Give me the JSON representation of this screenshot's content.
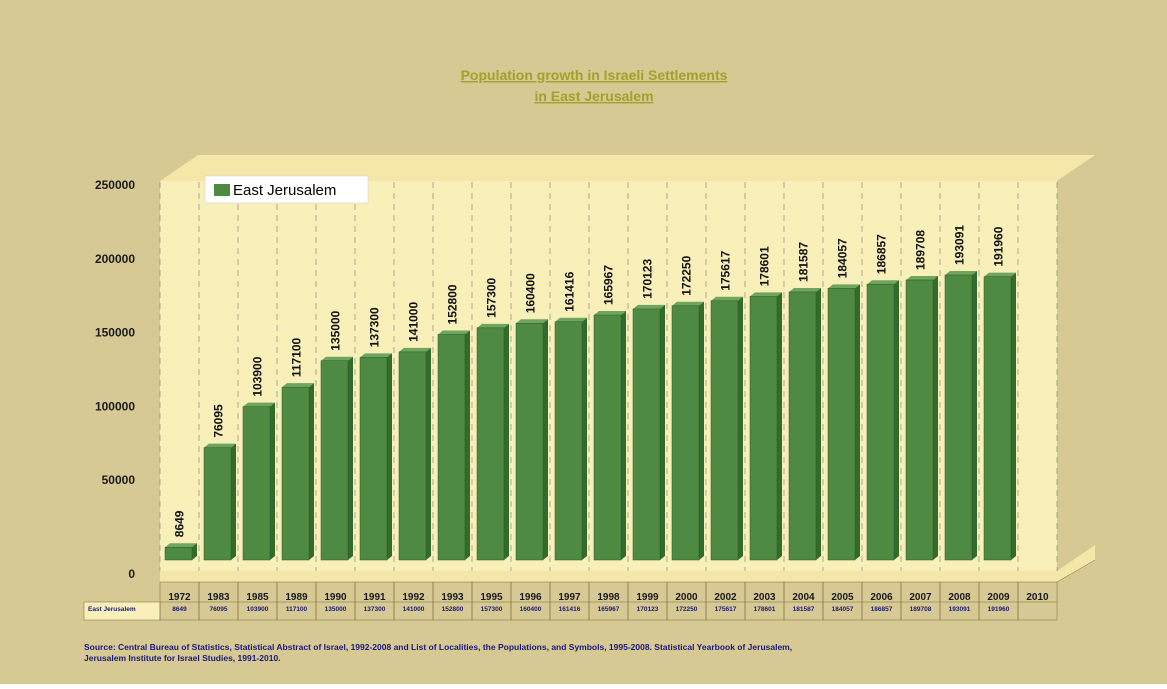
{
  "colors": {
    "background": "#d6c993",
    "plot_area": "#f8efb9",
    "plot_depth": "#f4e7a8",
    "bar_front": "#4f8a42",
    "bar_top": "#6fa65e",
    "bar_side": "#336b2b",
    "title": "#a3a12a",
    "gridline": "#8a8a8a"
  },
  "chart_data": {
    "type": "bar",
    "title": "Population growth in Israeli Settlements",
    "subtitle": "in East Jerusalem",
    "categories": [
      "1972",
      "1983",
      "1985",
      "1989",
      "1990",
      "1991",
      "1992",
      "1993",
      "1995",
      "1996",
      "1997",
      "1998",
      "1999",
      "2000",
      "2002",
      "2003",
      "2004",
      "2005",
      "2006",
      "2007",
      "2008",
      "2009",
      "2010"
    ],
    "series": [
      {
        "name": "East Jerusalem",
        "values": [
          8649,
          76095,
          103900,
          117100,
          135000,
          137300,
          141000,
          152800,
          157300,
          160400,
          161416,
          165967,
          170123,
          172250,
          175617,
          178601,
          181587,
          184057,
          186857,
          189708,
          193091,
          191960,
          null
        ]
      }
    ],
    "ylim": [
      0,
      250000
    ],
    "yticks": [
      "0",
      "50000",
      "100000",
      "150000",
      "200000",
      "250000"
    ],
    "xlabel": "",
    "ylabel": "",
    "grid": "vertical dashed",
    "legend": "top-left",
    "data_table": {
      "row_label": "East Jerusalem",
      "values": [
        "8649",
        "76095",
        "103900",
        "117100",
        "135000",
        "137300",
        "141000",
        "152800",
        "157300",
        "160400",
        "161416",
        "165967",
        "170123",
        "172250",
        "175617",
        "178601",
        "181587",
        "184057",
        "186857",
        "189708",
        "193091",
        "191960",
        ""
      ]
    },
    "source": "Source: Central Bureau of Statistics, Statistical Abstract of Israel, 1992-2008 and List of Localities, the Populations, and Symbols, 1995-2008. Statistical Yearbook of Jerusalem,",
    "source_line2": "Jerusalem Institute for Israel Studies, 1991-2010."
  }
}
